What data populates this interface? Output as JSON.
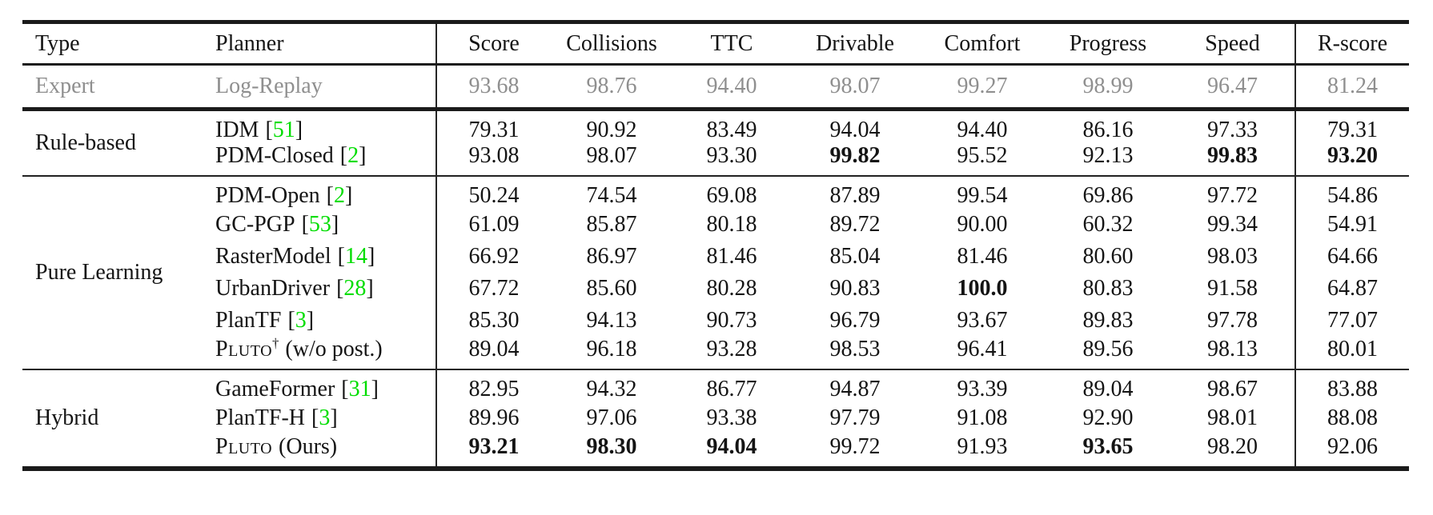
{
  "table": {
    "header": {
      "type": "Type",
      "planner": "Planner",
      "metrics": [
        "Score",
        "Collisions",
        "TTC",
        "Drivable",
        "Comfort",
        "Progress",
        "Speed",
        "R-score"
      ]
    },
    "cite_open": "[",
    "cite_close": "]",
    "colors": {
      "citation": "#00dd00",
      "muted_row": "#8f8f8f",
      "text": "#141414",
      "rule": "#1b1b1b"
    },
    "groups": [
      {
        "type": "Expert",
        "muted": true,
        "rows": [
          {
            "name": "Log-Replay",
            "values": [
              "93.68",
              "98.76",
              "94.40",
              "98.07",
              "99.27",
              "98.99",
              "96.47",
              "81.24"
            ],
            "bold": []
          }
        ]
      },
      {
        "type": "Rule-based",
        "muted": false,
        "rows": [
          {
            "name": "IDM",
            "cite": "51",
            "values": [
              "79.31",
              "90.92",
              "83.49",
              "94.04",
              "94.40",
              "86.16",
              "97.33",
              "79.31"
            ],
            "bold": []
          },
          {
            "name": "PDM-Closed",
            "cite": "2",
            "values": [
              "93.08",
              "98.07",
              "93.30",
              "99.82",
              "95.52",
              "92.13",
              "99.83",
              "93.20"
            ],
            "bold": [
              3,
              6,
              7
            ]
          }
        ]
      },
      {
        "type": "Pure Learning",
        "muted": false,
        "rows": [
          {
            "name": "PDM-Open",
            "cite": "2",
            "values": [
              "50.24",
              "74.54",
              "69.08",
              "87.89",
              "99.54",
              "69.86",
              "97.72",
              "54.86"
            ],
            "bold": []
          },
          {
            "name": "GC-PGP",
            "cite": "53",
            "values": [
              "61.09",
              "85.87",
              "80.18",
              "89.72",
              "90.00",
              "60.32",
              "99.34",
              "54.91"
            ],
            "bold": []
          },
          {
            "name": "RasterModel",
            "cite": "14",
            "values": [
              "66.92",
              "86.97",
              "81.46",
              "85.04",
              "81.46",
              "80.60",
              "98.03",
              "64.66"
            ],
            "bold": []
          },
          {
            "name": "UrbanDriver",
            "cite": "28",
            "values": [
              "67.72",
              "85.60",
              "80.28",
              "90.83",
              "100.0",
              "80.83",
              "91.58",
              "64.87"
            ],
            "bold": [
              4
            ]
          },
          {
            "name": "PlanTF",
            "cite": "3",
            "values": [
              "85.30",
              "94.13",
              "90.73",
              "96.79",
              "93.67",
              "89.83",
              "97.78",
              "77.07"
            ],
            "bold": []
          },
          {
            "name": "Pluto",
            "smallcaps": true,
            "sup": "†",
            "suffix": "(w/o post.)",
            "values": [
              "89.04",
              "96.18",
              "93.28",
              "98.53",
              "96.41",
              "89.56",
              "98.13",
              "80.01"
            ],
            "bold": []
          }
        ]
      },
      {
        "type": "Hybrid",
        "muted": false,
        "rows": [
          {
            "name": "GameFormer",
            "cite": "31",
            "values": [
              "82.95",
              "94.32",
              "86.77",
              "94.87",
              "93.39",
              "89.04",
              "98.67",
              "83.88"
            ],
            "bold": []
          },
          {
            "name": "PlanTF-H",
            "cite": "3",
            "values": [
              "89.96",
              "97.06",
              "93.38",
              "97.79",
              "91.08",
              "92.90",
              "98.01",
              "88.08"
            ],
            "bold": []
          },
          {
            "name": "Pluto",
            "smallcaps": true,
            "suffix": "(Ours)",
            "values": [
              "93.21",
              "98.30",
              "94.04",
              "99.72",
              "91.93",
              "93.65",
              "98.20",
              "92.06"
            ],
            "bold": [
              0,
              1,
              2,
              5
            ]
          }
        ]
      }
    ]
  }
}
